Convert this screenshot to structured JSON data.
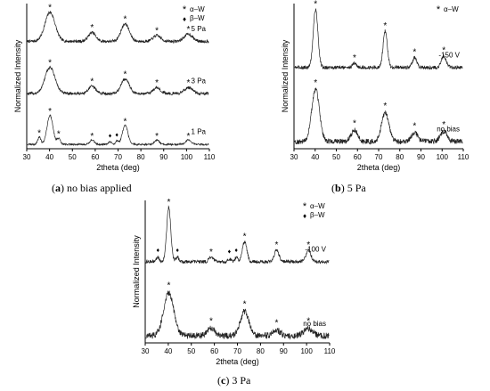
{
  "figure": {
    "captions": [
      {
        "letter": "a",
        "text": "no bias applied"
      },
      {
        "letter": "b",
        "text": "5 Pa"
      },
      {
        "letter": "c",
        "text": "3 Pa"
      }
    ]
  },
  "chart_data": [
    {
      "type": "line",
      "panel": "a",
      "xlabel": "2theta (deg)",
      "ylabel": "Normalized Intensity",
      "xlim": [
        30,
        110
      ],
      "xticks": [
        30,
        40,
        50,
        60,
        70,
        80,
        90,
        100,
        110
      ],
      "legend": [
        {
          "marker": "*",
          "label": "α–W"
        },
        {
          "marker": "♦",
          "label": "β–W"
        }
      ],
      "legend_placement": "top-right",
      "series": [
        {
          "name": "5 Pa",
          "base": 0.74,
          "noise": 0.01,
          "peaks": [
            [
              40.2,
              0.2,
              2.2
            ],
            [
              58.6,
              0.06,
              1.6
            ],
            [
              73.1,
              0.12,
              1.8
            ],
            [
              87.0,
              0.04,
              1.6
            ],
            [
              100.8,
              0.05,
              1.8
            ]
          ],
          "markers": [
            {
              "x": 40.2,
              "sym": "*"
            },
            {
              "x": 58.6,
              "sym": "*"
            },
            {
              "x": 73.1,
              "sym": "*"
            },
            {
              "x": 87.0,
              "sym": "*"
            },
            {
              "x": 100.8,
              "sym": "*"
            }
          ]
        },
        {
          "name": "3 Pa",
          "base": 0.38,
          "noise": 0.01,
          "peaks": [
            [
              40.2,
              0.18,
              2.2
            ],
            [
              58.6,
              0.05,
              1.6
            ],
            [
              73.1,
              0.1,
              1.8
            ],
            [
              87.0,
              0.04,
              1.6
            ],
            [
              100.8,
              0.04,
              1.8
            ]
          ],
          "markers": [
            {
              "x": 40.2,
              "sym": "*"
            },
            {
              "x": 58.6,
              "sym": "*"
            },
            {
              "x": 73.1,
              "sym": "*"
            },
            {
              "x": 87.0,
              "sym": "*"
            },
            {
              "x": 100.8,
              "sym": "*"
            }
          ]
        },
        {
          "name": "1 Pa",
          "base": 0.03,
          "noise": 0.006,
          "peaks": [
            [
              35.5,
              0.05,
              0.7
            ],
            [
              40.2,
              0.2,
              1.3
            ],
            [
              44.0,
              0.04,
              0.7
            ],
            [
              58.6,
              0.03,
              1.0
            ],
            [
              66.5,
              0.02,
              0.6
            ],
            [
              69.5,
              0.025,
              0.6
            ],
            [
              73.1,
              0.13,
              1.2
            ],
            [
              87.0,
              0.03,
              1.0
            ],
            [
              100.8,
              0.03,
              1.2
            ]
          ],
          "markers": [
            {
              "x": 35.5,
              "sym": "*"
            },
            {
              "x": 40.2,
              "sym": "*"
            },
            {
              "x": 44.0,
              "sym": "*"
            },
            {
              "x": 58.6,
              "sym": "*"
            },
            {
              "x": 66.5,
              "sym": "♦"
            },
            {
              "x": 69.5,
              "sym": "♦"
            },
            {
              "x": 73.1,
              "sym": "*"
            },
            {
              "x": 87.0,
              "sym": "*"
            },
            {
              "x": 100.8,
              "sym": "*"
            }
          ]
        }
      ]
    },
    {
      "type": "line",
      "panel": "b",
      "xlabel": "2theta (deg)",
      "ylabel": "Normalized Intensity",
      "xlim": [
        30,
        110
      ],
      "xticks": [
        30,
        40,
        50,
        60,
        70,
        80,
        90,
        100,
        110
      ],
      "legend": [
        {
          "marker": "*",
          "label": "α–W"
        }
      ],
      "legend_placement": "top-right",
      "series": [
        {
          "name": "-150 V",
          "base": 0.56,
          "noise": 0.012,
          "peaks": [
            [
              40.2,
              0.4,
              1.1
            ],
            [
              58.6,
              0.03,
              0.9
            ],
            [
              73.1,
              0.25,
              1.0
            ],
            [
              87.0,
              0.07,
              1.0
            ],
            [
              100.8,
              0.08,
              1.1
            ]
          ],
          "markers": [
            {
              "x": 40.2,
              "sym": "*"
            },
            {
              "x": 58.6,
              "sym": "*"
            },
            {
              "x": 73.1,
              "sym": "*"
            },
            {
              "x": 87.0,
              "sym": "*"
            },
            {
              "x": 100.8,
              "sym": "*"
            }
          ]
        },
        {
          "name": "no bias",
          "base": 0.05,
          "noise": 0.018,
          "peaks": [
            [
              40.2,
              0.36,
              1.8
            ],
            [
              58.6,
              0.08,
              1.5
            ],
            [
              73.1,
              0.2,
              1.7
            ],
            [
              87.0,
              0.06,
              1.5
            ],
            [
              100.8,
              0.07,
              1.6
            ]
          ],
          "markers": [
            {
              "x": 40.2,
              "sym": "*"
            },
            {
              "x": 58.6,
              "sym": "*"
            },
            {
              "x": 73.1,
              "sym": "*"
            },
            {
              "x": 87.0,
              "sym": "*"
            },
            {
              "x": 100.8,
              "sym": "*"
            }
          ]
        }
      ]
    },
    {
      "type": "line",
      "panel": "c",
      "xlabel": "2theta (deg)",
      "ylabel": "Normalized Intensity",
      "xlim": [
        30,
        110
      ],
      "xticks": [
        30,
        40,
        50,
        60,
        70,
        80,
        90,
        100,
        110
      ],
      "legend": [
        {
          "marker": "*",
          "label": "α–W"
        },
        {
          "marker": "♦",
          "label": "β–W"
        }
      ],
      "legend_placement": "top-right",
      "series": [
        {
          "name": "-100 V",
          "base": 0.57,
          "noise": 0.012,
          "peaks": [
            [
              35.5,
              0.03,
              0.7
            ],
            [
              40.2,
              0.38,
              0.9
            ],
            [
              44.0,
              0.03,
              0.7
            ],
            [
              58.6,
              0.03,
              0.9
            ],
            [
              66.5,
              0.02,
              0.6
            ],
            [
              69.5,
              0.03,
              0.6
            ],
            [
              73.1,
              0.14,
              1.0
            ],
            [
              87.0,
              0.08,
              1.0
            ],
            [
              100.8,
              0.08,
              1.1
            ]
          ],
          "markers": [
            {
              "x": 35.5,
              "sym": "♦"
            },
            {
              "x": 40.2,
              "sym": "*"
            },
            {
              "x": 44.0,
              "sym": "♦"
            },
            {
              "x": 58.6,
              "sym": "*"
            },
            {
              "x": 66.5,
              "sym": "♦"
            },
            {
              "x": 69.5,
              "sym": "♦"
            },
            {
              "x": 73.1,
              "sym": "*"
            },
            {
              "x": 87.0,
              "sym": "*"
            },
            {
              "x": 100.8,
              "sym": "*"
            }
          ]
        },
        {
          "name": "no bias",
          "base": 0.05,
          "noise": 0.022,
          "peaks": [
            [
              40.2,
              0.3,
              2.2
            ],
            [
              58.6,
              0.05,
              1.6
            ],
            [
              73.1,
              0.17,
              1.8
            ],
            [
              87.0,
              0.04,
              1.6
            ],
            [
              100.8,
              0.05,
              1.8
            ]
          ],
          "markers": [
            {
              "x": 40.2,
              "sym": "*"
            },
            {
              "x": 58.6,
              "sym": "*"
            },
            {
              "x": 73.1,
              "sym": "*"
            },
            {
              "x": 87.0,
              "sym": "*"
            },
            {
              "x": 100.8,
              "sym": "*"
            }
          ]
        }
      ]
    }
  ]
}
